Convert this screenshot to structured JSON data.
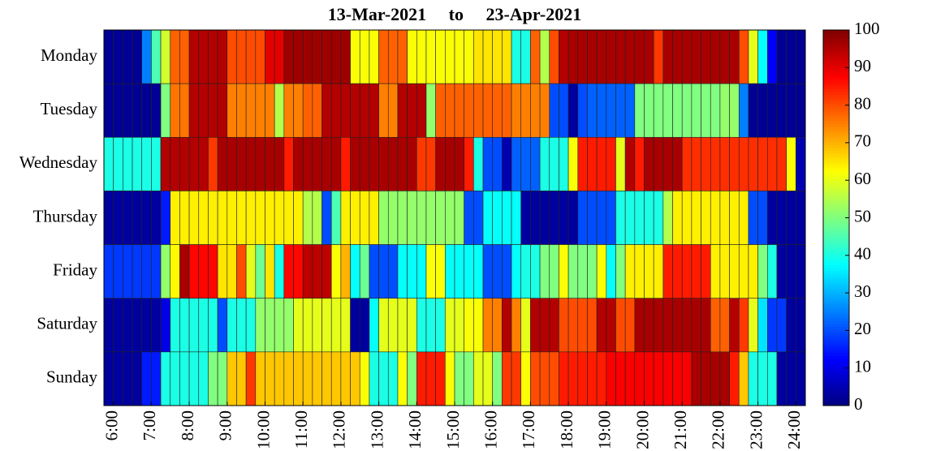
{
  "chart_data": {
    "type": "heatmap",
    "title": "13-Mar-2021     to     23-Apr-2021",
    "categories": [
      "Monday",
      "Tuesday",
      "Wednesday",
      "Thursday",
      "Friday",
      "Saturday",
      "Sunday"
    ],
    "colormap": "jet",
    "clim": [
      0,
      100
    ],
    "xlim": [
      5.75,
      24.25
    ],
    "xticks": [
      {
        "value": 6,
        "label": "6:00"
      },
      {
        "value": 7,
        "label": "7:00"
      },
      {
        "value": 8,
        "label": "8:00"
      },
      {
        "value": 9,
        "label": "9:00"
      },
      {
        "value": 10,
        "label": "10:00"
      },
      {
        "value": 11,
        "label": "11:00"
      },
      {
        "value": 12,
        "label": "12:00"
      },
      {
        "value": 13,
        "label": "13:00"
      },
      {
        "value": 14,
        "label": "14:00"
      },
      {
        "value": 15,
        "label": "15:00"
      },
      {
        "value": 16,
        "label": "16:00"
      },
      {
        "value": 17,
        "label": "17:00"
      },
      {
        "value": 18,
        "label": "18:00"
      },
      {
        "value": 19,
        "label": "19:00"
      },
      {
        "value": 20,
        "label": "20:00"
      },
      {
        "value": 21,
        "label": "21:00"
      },
      {
        "value": 22,
        "label": "22:00"
      },
      {
        "value": 23,
        "label": "23:00"
      },
      {
        "value": 24,
        "label": "24:00"
      }
    ],
    "colorbar_ticks": [
      0,
      10,
      20,
      30,
      40,
      50,
      60,
      70,
      80,
      90,
      100
    ],
    "values": [
      [
        2,
        2,
        2,
        2,
        25,
        45,
        58,
        78,
        78,
        95,
        95,
        95,
        95,
        80,
        80,
        80,
        80,
        90,
        90,
        97,
        97,
        97,
        97,
        97,
        97,
        97,
        62,
        62,
        62,
        78,
        78,
        78,
        62,
        62,
        62,
        62,
        62,
        62,
        62,
        65,
        65,
        65,
        65,
        40,
        40,
        78,
        55,
        80,
        95,
        96,
        96,
        96,
        96,
        96,
        96,
        96,
        96,
        96,
        82,
        96,
        96,
        96,
        96,
        96,
        96,
        96,
        96,
        80,
        60,
        38,
        12,
        2,
        2,
        2
      ],
      [
        2,
        2,
        2,
        2,
        2,
        2,
        50,
        76,
        76,
        95,
        95,
        95,
        95,
        75,
        75,
        75,
        75,
        75,
        55,
        75,
        75,
        78,
        78,
        95,
        95,
        95,
        95,
        95,
        95,
        75,
        75,
        95,
        95,
        95,
        52,
        78,
        78,
        78,
        78,
        78,
        78,
        78,
        78,
        75,
        75,
        75,
        75,
        20,
        20,
        3,
        20,
        22,
        22,
        22,
        22,
        22,
        50,
        50,
        50,
        50,
        50,
        50,
        50,
        50,
        50,
        52,
        52,
        25,
        2,
        2,
        2,
        2,
        2,
        2
      ],
      [
        40,
        40,
        40,
        40,
        40,
        40,
        95,
        95,
        95,
        95,
        95,
        82,
        96,
        96,
        96,
        96,
        96,
        96,
        96,
        85,
        96,
        96,
        96,
        96,
        96,
        85,
        96,
        96,
        96,
        96,
        96,
        96,
        96,
        82,
        82,
        96,
        96,
        96,
        85,
        40,
        20,
        20,
        5,
        22,
        22,
        22,
        40,
        40,
        40,
        62,
        85,
        85,
        85,
        85,
        60,
        95,
        85,
        96,
        96,
        96,
        96,
        83,
        83,
        83,
        83,
        83,
        83,
        83,
        83,
        83,
        83,
        83,
        62,
        5
      ],
      [
        3,
        3,
        3,
        3,
        3,
        3,
        15,
        64,
        64,
        64,
        64,
        64,
        64,
        64,
        64,
        64,
        64,
        64,
        64,
        64,
        64,
        55,
        55,
        20,
        45,
        64,
        64,
        64,
        64,
        52,
        52,
        52,
        52,
        52,
        52,
        52,
        52,
        52,
        20,
        20,
        38,
        38,
        38,
        38,
        3,
        3,
        3,
        3,
        3,
        3,
        20,
        20,
        20,
        20,
        40,
        40,
        40,
        40,
        40,
        55,
        64,
        64,
        64,
        64,
        64,
        64,
        64,
        64,
        20,
        20,
        3,
        3,
        3,
        3
      ],
      [
        18,
        18,
        18,
        18,
        18,
        18,
        52,
        63,
        96,
        87,
        87,
        87,
        65,
        65,
        80,
        60,
        48,
        65,
        40,
        87,
        87,
        94,
        94,
        94,
        62,
        70,
        38,
        48,
        20,
        20,
        20,
        38,
        38,
        38,
        62,
        62,
        38,
        38,
        38,
        38,
        20,
        20,
        20,
        38,
        40,
        40,
        50,
        50,
        62,
        50,
        50,
        50,
        62,
        38,
        50,
        64,
        64,
        64,
        64,
        85,
        85,
        85,
        85,
        85,
        64,
        64,
        64,
        64,
        64,
        50,
        40,
        3,
        3,
        3
      ],
      [
        3,
        3,
        3,
        3,
        3,
        3,
        10,
        40,
        40,
        40,
        40,
        40,
        20,
        40,
        40,
        40,
        52,
        52,
        52,
        52,
        60,
        60,
        60,
        60,
        60,
        60,
        3,
        3,
        38,
        60,
        60,
        60,
        60,
        40,
        40,
        40,
        60,
        60,
        62,
        62,
        75,
        75,
        95,
        75,
        60,
        95,
        95,
        95,
        80,
        80,
        80,
        80,
        95,
        95,
        80,
        80,
        96,
        96,
        96,
        96,
        96,
        96,
        96,
        96,
        78,
        78,
        95,
        82,
        60,
        35,
        18,
        18,
        3,
        3
      ],
      [
        3,
        3,
        3,
        3,
        15,
        15,
        40,
        40,
        40,
        40,
        40,
        50,
        50,
        68,
        68,
        82,
        68,
        68,
        68,
        68,
        68,
        68,
        68,
        68,
        68,
        68,
        68,
        62,
        40,
        40,
        40,
        62,
        50,
        85,
        85,
        85,
        62,
        50,
        50,
        60,
        60,
        50,
        82,
        82,
        62,
        80,
        80,
        80,
        85,
        85,
        85,
        85,
        85,
        88,
        88,
        88,
        88,
        88,
        88,
        88,
        88,
        88,
        96,
        96,
        96,
        96,
        85,
        68,
        40,
        40,
        40,
        3,
        3,
        3
      ]
    ]
  }
}
